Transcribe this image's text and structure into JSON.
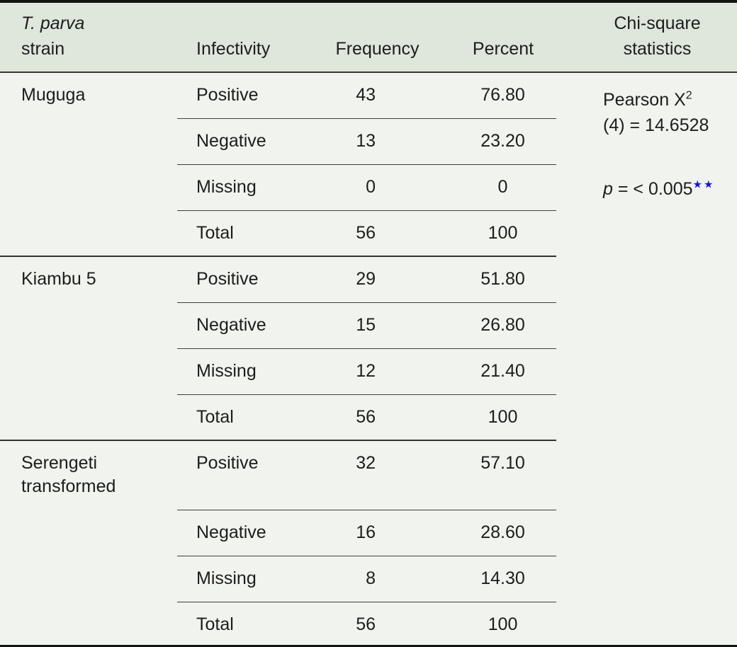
{
  "colors": {
    "header_bg": "#dfe6dc",
    "body_bg": "#f0f3ee",
    "rule_dark": "#383838",
    "outer_border": "#141414",
    "significance_blue": "#1414e6",
    "text": "#1d1d1d"
  },
  "header": {
    "strain_line1": "T. parva",
    "strain_line2": "strain",
    "infectivity": "Infectivity",
    "frequency": "Frequency",
    "percent": "Percent",
    "chi_line1": "Chi-square",
    "chi_line2": "statistics"
  },
  "chi_square": {
    "pearson_prefix": "Pearson X",
    "pearson_exponent": "2",
    "df_equation": "(4) = 14.6528",
    "p_symbol": "p",
    "p_equation": " = < 0.005",
    "significance_stars": "★★"
  },
  "groups": [
    {
      "strain": "Muguga",
      "rows": [
        {
          "infectivity": "Positive",
          "frequency": "43",
          "percent": "76.80"
        },
        {
          "infectivity": "Negative",
          "frequency": "13",
          "percent": "23.20"
        },
        {
          "infectivity": "Missing",
          "frequency": "0",
          "percent": "0"
        },
        {
          "infectivity": "Total",
          "frequency": "56",
          "percent": "100"
        }
      ]
    },
    {
      "strain": "Kiambu 5",
      "rows": [
        {
          "infectivity": "Positive",
          "frequency": "29",
          "percent": "51.80"
        },
        {
          "infectivity": "Negative",
          "frequency": "15",
          "percent": "26.80"
        },
        {
          "infectivity": "Missing",
          "frequency": "12",
          "percent": "21.40"
        },
        {
          "infectivity": "Total",
          "frequency": "56",
          "percent": "100"
        }
      ]
    },
    {
      "strain": "Serengeti transformed",
      "rows": [
        {
          "infectivity": "Positive",
          "frequency": "32",
          "percent": "57.10"
        },
        {
          "infectivity": "Negative",
          "frequency": "16",
          "percent": "28.60"
        },
        {
          "infectivity": "Missing",
          "frequency": "8",
          "percent": "14.30"
        },
        {
          "infectivity": "Total",
          "frequency": "56",
          "percent": "100"
        }
      ]
    }
  ]
}
